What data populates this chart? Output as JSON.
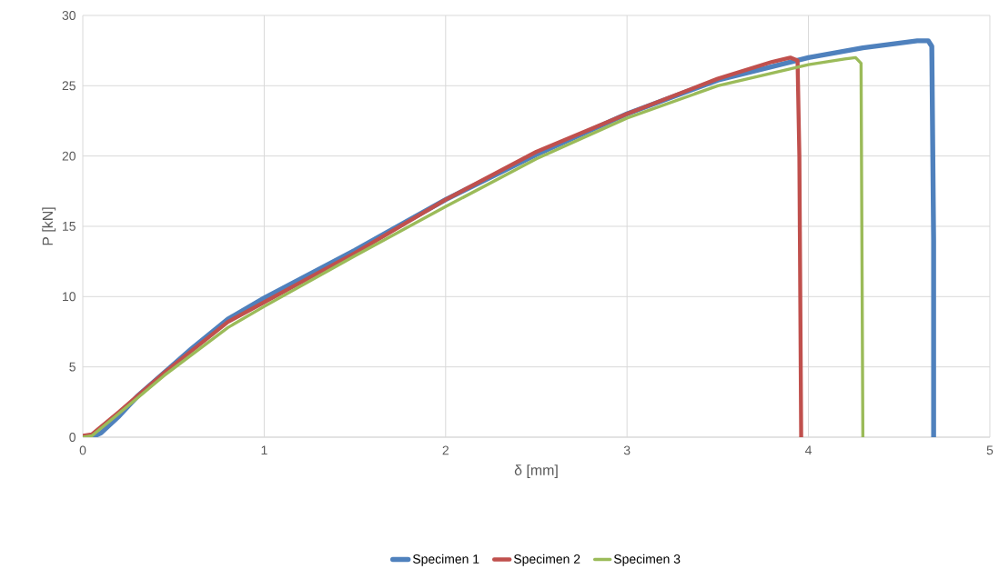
{
  "chart_data": {
    "type": "line",
    "xlabel": "δ [mm]",
    "ylabel": "P [kN]",
    "xlim": [
      0,
      5
    ],
    "ylim": [
      0,
      30
    ],
    "xticks": [
      0,
      1,
      2,
      3,
      4,
      5
    ],
    "yticks": [
      0,
      5,
      10,
      15,
      20,
      25,
      30
    ],
    "grid": true,
    "legend": "bottom",
    "marker": "none",
    "line_style": "solid",
    "series": [
      {
        "name": "Specimen 1",
        "color": "#4f81bd",
        "x": [
          0.05,
          0.1,
          0.2,
          0.3,
          0.45,
          0.6,
          0.8,
          1.0,
          1.25,
          1.5,
          2.0,
          2.5,
          3.0,
          3.5,
          4.0,
          4.3,
          4.6,
          4.66,
          4.68,
          4.69,
          4.69
        ],
        "values": [
          0,
          0.3,
          1.5,
          2.9,
          4.6,
          6.3,
          8.4,
          9.9,
          11.6,
          13.3,
          16.9,
          20.1,
          23.0,
          25.4,
          27.0,
          27.7,
          28.2,
          28.2,
          27.8,
          14,
          0
        ]
      },
      {
        "name": "Specimen 2",
        "color": "#c0504d",
        "x": [
          0,
          0.05,
          0.2,
          0.45,
          0.8,
          1.0,
          1.5,
          2.0,
          2.5,
          3.0,
          3.5,
          3.8,
          3.9,
          3.94,
          3.95,
          3.96
        ],
        "values": [
          0.1,
          0.2,
          1.8,
          4.6,
          8.2,
          9.6,
          13.1,
          16.9,
          20.3,
          23.0,
          25.5,
          26.7,
          27.0,
          26.8,
          20,
          0
        ]
      },
      {
        "name": "Specimen 3",
        "color": "#9bbb59",
        "x": [
          0,
          0.05,
          0.2,
          0.45,
          0.8,
          1.0,
          1.5,
          2.0,
          2.5,
          3.0,
          3.5,
          4.0,
          4.2,
          4.26,
          4.29,
          4.3
        ],
        "values": [
          0,
          0.1,
          1.7,
          4.4,
          7.8,
          9.3,
          12.9,
          16.4,
          19.8,
          22.7,
          25.0,
          26.5,
          26.9,
          27.0,
          26.6,
          0
        ]
      }
    ]
  }
}
